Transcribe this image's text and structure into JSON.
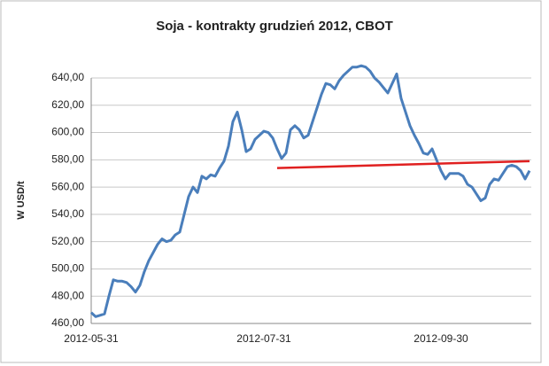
{
  "chart_data": {
    "type": "line",
    "title": "Soja - kontrakty grudzień 2012, CBOT",
    "y_label": "W USD/t",
    "categories": [
      "2012-05-31",
      null,
      null,
      null,
      null,
      null,
      null,
      null,
      null,
      null,
      null,
      null,
      null,
      null,
      null,
      null,
      null,
      null,
      null,
      null,
      null,
      null,
      null,
      null,
      null,
      null,
      null,
      null,
      null,
      null,
      null,
      null,
      null,
      null,
      null,
      null,
      null,
      null,
      null,
      "2012-07-31",
      null,
      null,
      null,
      null,
      null,
      null,
      null,
      null,
      null,
      null,
      null,
      null,
      null,
      null,
      null,
      null,
      null,
      null,
      null,
      null,
      null,
      null,
      null,
      null,
      null,
      null,
      null,
      null,
      null,
      null,
      null,
      null,
      null,
      null,
      null,
      null,
      null,
      null,
      null,
      "2012-09-30",
      null,
      null,
      null,
      null,
      null,
      null,
      null,
      null,
      null,
      null,
      null,
      null,
      null,
      null,
      null,
      null,
      null,
      null,
      null,
      null
    ],
    "series": [
      {
        "name": "CBOT",
        "color": "#4a7ebb",
        "values": [
          468,
          465,
          466,
          467,
          480,
          492,
          491,
          491,
          490,
          487,
          483,
          488,
          498,
          506,
          512,
          518,
          522,
          520,
          521,
          525,
          527,
          540,
          553,
          560,
          556,
          568,
          566,
          569,
          568,
          574,
          579,
          590,
          608,
          615,
          602,
          586,
          588,
          595,
          598,
          601,
          600,
          596,
          588,
          581,
          585,
          602,
          605,
          602,
          596,
          598,
          608,
          618,
          628,
          636,
          635,
          632,
          638,
          642,
          645,
          648,
          648,
          649,
          648,
          645,
          640,
          637,
          633,
          629,
          636,
          643,
          625,
          615,
          605,
          598,
          592,
          585,
          584,
          588,
          580,
          572,
          566,
          570,
          570,
          570,
          568,
          562,
          560,
          555,
          550,
          552,
          562,
          566,
          565,
          570,
          575,
          576,
          575,
          572,
          566,
          572
        ]
      }
    ],
    "trend_line": {
      "color": "#e02020",
      "from": [
        42,
        574
      ],
      "to": [
        99,
        579
      ]
    },
    "ylim": [
      460,
      640
    ],
    "yticks": [
      {
        "value": 460,
        "label": "460,00"
      },
      {
        "value": 480,
        "label": "480,00"
      },
      {
        "value": 500,
        "label": "500,00"
      },
      {
        "value": 520,
        "label": "520,00"
      },
      {
        "value": 540,
        "label": "540,00"
      },
      {
        "value": 560,
        "label": "560,00"
      },
      {
        "value": 580,
        "label": "580,00"
      },
      {
        "value": 600,
        "label": "600,00"
      },
      {
        "value": 620,
        "label": "620,00"
      },
      {
        "value": 640,
        "label": "640,00"
      }
    ],
    "grid": true
  }
}
